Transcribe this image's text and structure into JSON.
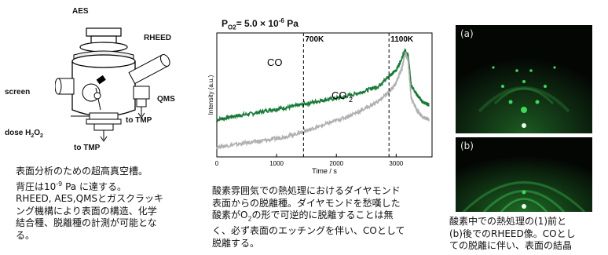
{
  "apparatus": {
    "labels": {
      "aes": "AES",
      "rheed": "RHEED",
      "screen": "screen",
      "qms": "QMS",
      "to_tmp_right": "to TMP",
      "dose_prefix": "dose H",
      "dose_sub1": "2",
      "dose_mid": "O",
      "dose_sub2": "2",
      "to_tmp_bottom": "to TMP"
    },
    "caption": {
      "line1": "表面分析のための超高真空槽。",
      "line2_pre": "背圧は10",
      "line2_sup": "-9",
      "line2_post": " Pa に達する。",
      "line3": "RHEED, AES,QMSとガスクラッキ",
      "line4": "ング機構により表面の構造、化学",
      "line5": "結合種、脱離種の計測が可能とな",
      "line6": "る。"
    }
  },
  "chart_data": {
    "type": "line",
    "title_main": "P",
    "title_sub": "O2",
    "title_value": "= 5.0 × 10",
    "title_exp": "-6",
    "title_unit": " Pa",
    "xlabel": "Time / s",
    "ylabel": "Intensity (a.u.)",
    "xlim": [
      0,
      3600
    ],
    "xticks": [
      "0",
      "1000",
      "2000",
      "3000"
    ],
    "xtick_values": [
      0,
      1000,
      2000,
      3000
    ],
    "grid": false,
    "markers": [
      {
        "label": "700K",
        "x": 1450
      },
      {
        "label": "1100K",
        "x": 2880
      }
    ],
    "series": [
      {
        "name": "CO",
        "color": "#1a7a3a",
        "x": [
          0,
          300,
          600,
          900,
          1200,
          1500,
          1800,
          2100,
          2400,
          2700,
          2900,
          3000,
          3100,
          3150,
          3200,
          3250,
          3350,
          3450,
          3550
        ],
        "y": [
          0.3,
          0.33,
          0.35,
          0.38,
          0.4,
          0.43,
          0.46,
          0.48,
          0.52,
          0.57,
          0.66,
          0.7,
          0.8,
          0.86,
          0.82,
          0.58,
          0.5,
          0.44,
          0.42
        ]
      },
      {
        "name": "CO2",
        "color": "#b0b0b0",
        "x": [
          0,
          300,
          600,
          900,
          1200,
          1500,
          1800,
          2100,
          2400,
          2700,
          2900,
          3000,
          3100,
          3150,
          3200,
          3250,
          3350,
          3450,
          3550
        ],
        "y": [
          0.08,
          0.1,
          0.12,
          0.14,
          0.17,
          0.21,
          0.26,
          0.31,
          0.37,
          0.45,
          0.53,
          0.6,
          0.72,
          0.84,
          0.78,
          0.48,
          0.37,
          0.32,
          0.3
        ]
      }
    ],
    "series_labels": {
      "co": "CO",
      "co2_main": "CO",
      "co2_sub": "2"
    },
    "caption": {
      "line1": "酸素雰囲気での熱処理におけるダイヤモンド",
      "line2": "表面からの脱離種。ダイヤモンドを愁嘆した",
      "line3_pre": "酸素がO",
      "line3_sub": "2",
      "line3_post": "の形で可逆的に脱離することは無",
      "line4": "く、必ず表面のエッチングを伴い、COとして",
      "line5": "脱離する。"
    }
  },
  "rheed": {
    "a_label": "(a)",
    "b_label": "(b)",
    "spot_color": "#3fd85a",
    "caption": {
      "line1": "酸素中での熱処理の(1)前と",
      "line2": "(b)後でのRHEED像。COとし",
      "line3": "ての脱離に伴い、表面の結晶"
    }
  }
}
